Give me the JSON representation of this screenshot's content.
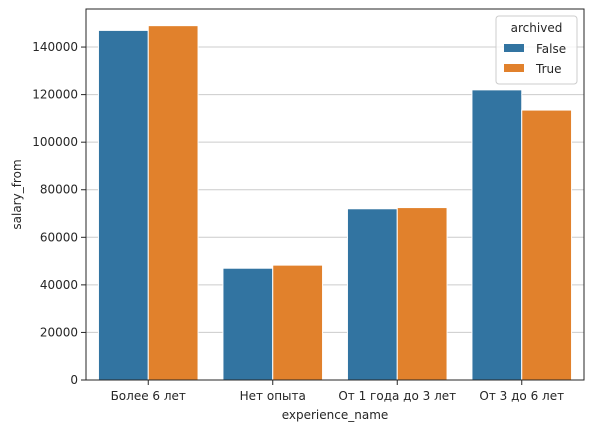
{
  "chart_data": {
    "type": "bar",
    "categories": [
      "Более 6 лет",
      "Нет опыта",
      "От 1 года до 3 лет",
      "От 3 до 6 лет"
    ],
    "series": [
      {
        "name": "False",
        "values": [
          147000,
          47000,
          72000,
          122000
        ],
        "color": "#3274a1"
      },
      {
        "name": "True",
        "values": [
          149000,
          48300,
          72500,
          113500
        ],
        "color": "#e1812c"
      }
    ],
    "xlabel": "experience_name",
    "ylabel": "salary_from",
    "ylim": [
      0,
      156000
    ],
    "yticks": [
      0,
      20000,
      40000,
      60000,
      80000,
      100000,
      120000,
      140000
    ],
    "grid": "horizontal",
    "legend": {
      "title": "archived",
      "position": "top-right"
    }
  }
}
